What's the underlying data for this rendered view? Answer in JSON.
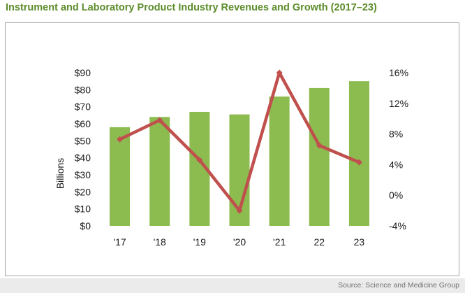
{
  "title": "Instrument and Laboratory Product Industry Revenues and Growth (2017–23)",
  "source": "Source: Science and Medicine Group",
  "colors": {
    "title": "#5b8c2a",
    "bar": "#8cbb4f",
    "line": "#c0504d"
  },
  "chart_data": {
    "type": "bar",
    "categories": [
      "'17",
      "'18",
      "'19",
      "'20",
      "'21",
      "22",
      "23"
    ],
    "series": [
      {
        "type": "bar",
        "axis": "left",
        "values": [
          58,
          64,
          67,
          65.5,
          76,
          81,
          85
        ]
      },
      {
        "type": "line",
        "axis": "right",
        "values": [
          7.3,
          9.8,
          4.6,
          -2,
          16,
          6.5,
          4.3
        ]
      }
    ],
    "ylabel": "Billions",
    "ylim": [
      0,
      90
    ],
    "y_ticks": [
      "$0",
      "$10",
      "$20",
      "$30",
      "$40",
      "$50",
      "$60",
      "$70",
      "$80",
      "$90"
    ],
    "y2lim": [
      -4,
      16
    ],
    "y2_ticks": [
      "-4%",
      "0%",
      "4%",
      "8%",
      "12%",
      "16%"
    ],
    "grid": false,
    "legend": "none"
  }
}
